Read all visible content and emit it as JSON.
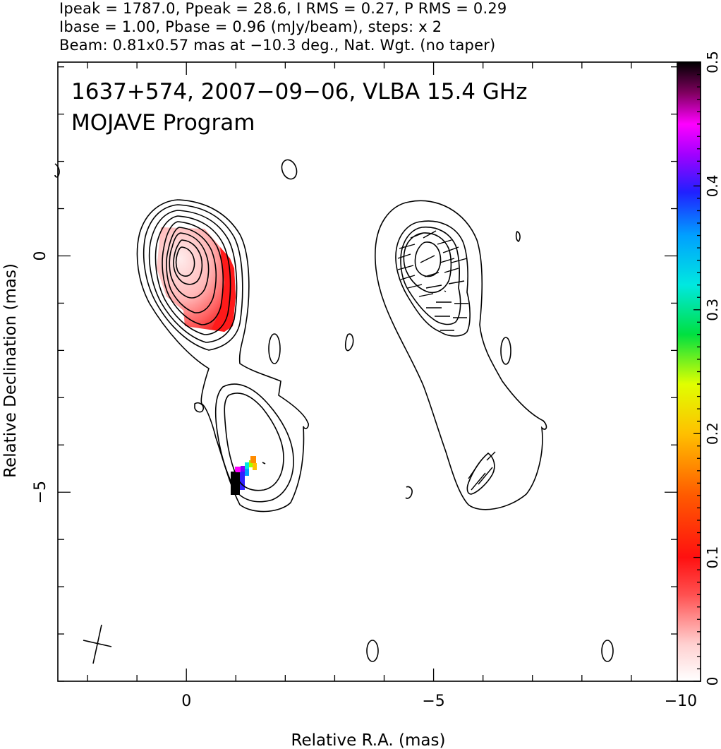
{
  "header": {
    "line1": "Ipeak = 1787.0, Ppeak = 28.6, I RMS = 0.27, P RMS = 0.29",
    "line2": "Ibase = 1.00, Pbase = 0.96 (mJy/beam), steps: x 2",
    "line3": "Beam: 0.81x0.57 mas at −10.3 deg., Nat. Wgt. (no taper)"
  },
  "colors": {
    "frame": "#000000",
    "contour": "#000000",
    "background": "#ffffff"
  },
  "chart_data": [
    {
      "type": "heatmap",
      "title": "1637+574, 2007−09−06, VLBA 15.4 GHz",
      "subtitle": "MOJAVE Program",
      "xlabel": "Relative R.A. (mas)",
      "ylabel": "Relative Declination (mas)",
      "xlim": [
        2.6,
        -10.4
      ],
      "ylim": [
        -9,
        4.1
      ],
      "x_ticks": [
        0,
        -5,
        -10
      ],
      "x_tick_labels": [
        "0",
        "−5",
        "−10"
      ],
      "y_ticks": [
        0,
        -5
      ],
      "y_tick_labels": [
        "0",
        "−5"
      ],
      "x_minor_step": 1,
      "y_minor_step": 1,
      "colorbar": {
        "range": [
          0,
          0.5
        ],
        "ticks": [
          0,
          0.1,
          0.2,
          0.3,
          0.4,
          0.5
        ],
        "tick_labels": [
          "0",
          "0.1",
          "0.2",
          "0.3",
          "0.4",
          "0.5"
        ]
      },
      "beam": {
        "major_mas": 0.81,
        "minor_mas": 0.57,
        "pa_deg": -10.3
      },
      "contour_base_mJy": 1.0,
      "contour_step_factor": 2,
      "panels": [
        "total intensity with fractional polarization colors",
        "total intensity with EVPA ticks"
      ]
    }
  ]
}
